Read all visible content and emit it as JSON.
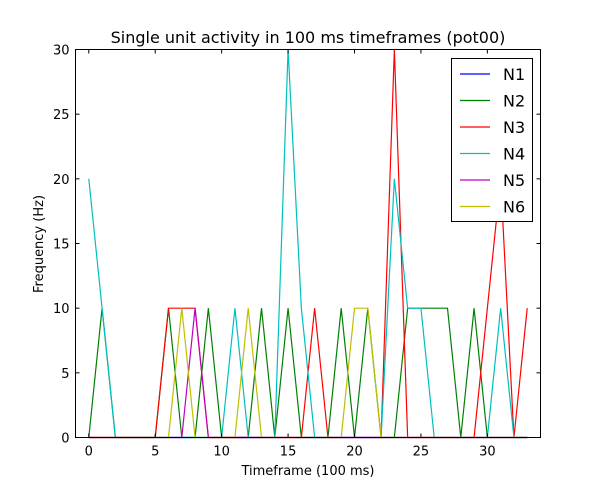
{
  "chart_data": {
    "type": "line",
    "title": "Single unit activity in 100 ms timeframes (pot00)",
    "xlabel": "Timeframe (100 ms)",
    "ylabel": "Frequency (Hz)",
    "xlim": [
      -1,
      34
    ],
    "ylim": [
      0,
      30
    ],
    "xticks": [
      0,
      5,
      10,
      15,
      20,
      25,
      30
    ],
    "yticks": [
      0,
      5,
      10,
      15,
      20,
      25,
      30
    ],
    "grid": false,
    "legend_position": "top-right",
    "x": [
      0,
      1,
      2,
      3,
      4,
      5,
      6,
      7,
      8,
      9,
      10,
      11,
      12,
      13,
      14,
      15,
      16,
      17,
      18,
      19,
      20,
      21,
      22,
      23,
      24,
      25,
      26,
      27,
      28,
      29,
      30,
      31,
      32,
      33
    ],
    "series": [
      {
        "name": "N1",
        "color": "#0000ff",
        "values": [
          0,
          0,
          0,
          0,
          0,
          0,
          0,
          0,
          0,
          0,
          0,
          0,
          0,
          0,
          0,
          0,
          0,
          0,
          0,
          0,
          0,
          0,
          0,
          0,
          0,
          0,
          0,
          0,
          0,
          0,
          0,
          0,
          0,
          0
        ]
      },
      {
        "name": "N2",
        "color": "#008000",
        "values": [
          0,
          10,
          0,
          0,
          0,
          0,
          10,
          0,
          0,
          10,
          0,
          0,
          0,
          10,
          0,
          10,
          0,
          0,
          0,
          10,
          0,
          10,
          0,
          0,
          10,
          10,
          10,
          10,
          0,
          10,
          0,
          0,
          0,
          0
        ]
      },
      {
        "name": "N3",
        "color": "#ff0000",
        "values": [
          0,
          0,
          0,
          0,
          0,
          0,
          10,
          10,
          10,
          0,
          0,
          0,
          0,
          0,
          0,
          0,
          0,
          10,
          0,
          0,
          0,
          0,
          0,
          30,
          0,
          0,
          0,
          0,
          0,
          0,
          10,
          20,
          0,
          10
        ]
      },
      {
        "name": "N4",
        "color": "#00bfbf",
        "values": [
          20,
          10,
          0,
          0,
          0,
          0,
          0,
          0,
          0,
          0,
          0,
          10,
          0,
          0,
          0,
          30,
          10,
          0,
          0,
          0,
          0,
          0,
          0,
          20,
          10,
          10,
          0,
          0,
          0,
          0,
          0,
          10,
          0,
          0
        ]
      },
      {
        "name": "N5",
        "color": "#bf00bf",
        "values": [
          0,
          0,
          0,
          0,
          0,
          0,
          0,
          0,
          10,
          0,
          0,
          0,
          0,
          0,
          0,
          0,
          0,
          0,
          0,
          0,
          0,
          0,
          0,
          0,
          0,
          0,
          0,
          0,
          0,
          0,
          0,
          0,
          0,
          0
        ]
      },
      {
        "name": "N6",
        "color": "#bfbf00",
        "values": [
          0,
          0,
          0,
          0,
          0,
          0,
          0,
          10,
          0,
          0,
          0,
          0,
          10,
          0,
          0,
          0,
          0,
          0,
          0,
          0,
          10,
          10,
          0,
          0,
          0,
          0,
          0,
          0,
          0,
          0,
          0,
          0,
          0,
          0
        ]
      }
    ]
  }
}
